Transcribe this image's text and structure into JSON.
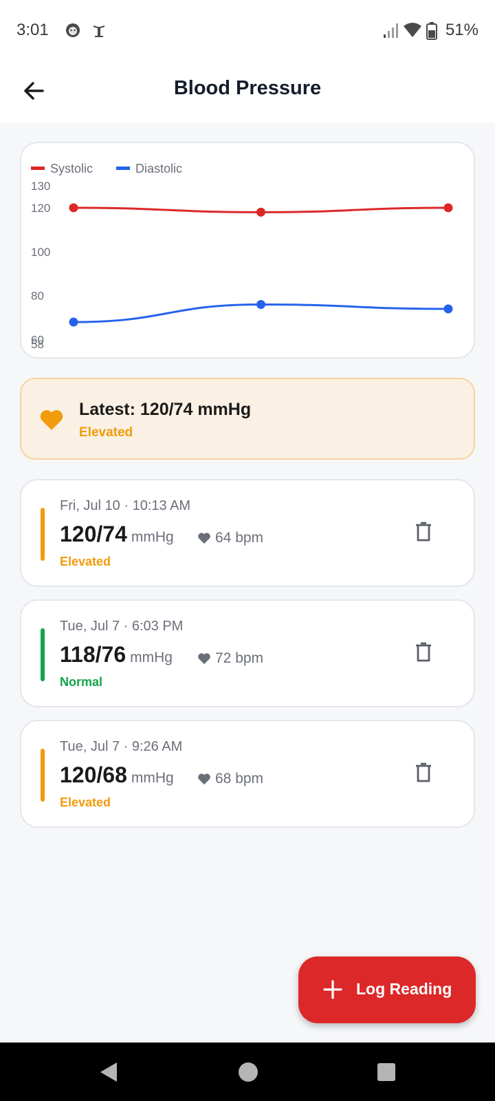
{
  "status_bar": {
    "time": "3:01",
    "battery": "51%"
  },
  "header": {
    "title": "Blood Pressure"
  },
  "chart_data": {
    "type": "line",
    "x": [
      "Tue, Jul 7 · 9:26 AM",
      "Tue, Jul 7 · 6:03 PM",
      "Fri, Jul 10 · 10:13 AM"
    ],
    "series": [
      {
        "name": "Systolic",
        "color": "#dc2828",
        "values": [
          120,
          118,
          120
        ]
      },
      {
        "name": "Diastolic",
        "color": "#2563eb",
        "values": [
          68,
          76,
          74
        ]
      }
    ],
    "yticks": [
      "130",
      "120",
      "100",
      "80",
      "60",
      "58"
    ],
    "ylim": [
      58,
      130
    ],
    "legend_position": "top-left",
    "grid": false
  },
  "latest": {
    "title": "Latest: 120/74 mmHg",
    "status": "Elevated",
    "icon": "heart-icon"
  },
  "readings": [
    {
      "date": "Fri, Jul 10 · 10:13 AM",
      "value": "120/74",
      "unit": "mmHg",
      "pulse": "64 bpm",
      "status": "Elevated",
      "color": "#f29b0c"
    },
    {
      "date": "Tue, Jul 7 · 6:03 PM",
      "value": "118/76",
      "unit": "mmHg",
      "pulse": "72 bpm",
      "status": "Normal",
      "color": "#16a34a"
    },
    {
      "date": "Tue, Jul 7 · 9:26 AM",
      "value": "120/68",
      "unit": "mmHg",
      "pulse": "68 bpm",
      "status": "Elevated",
      "color": "#f29b0c"
    }
  ],
  "fab": {
    "label": "Log Reading"
  },
  "colors": {
    "accent": "#dc2828",
    "elevated": "#f29b0c",
    "normal": "#16a34a"
  }
}
